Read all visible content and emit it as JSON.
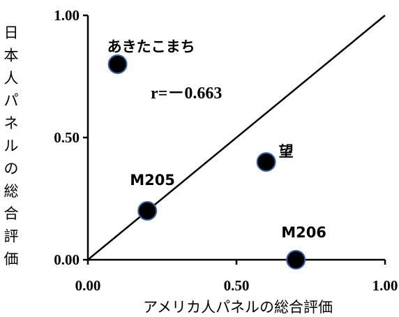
{
  "chart_data": {
    "type": "scatter",
    "xlabel": "アメリカ人パネルの総合評価",
    "ylabel": "日本人パネルの総合評価",
    "xlim": [
      0,
      1
    ],
    "ylim": [
      0,
      1
    ],
    "x_ticks": [
      "0.00",
      "0.50",
      "1.00"
    ],
    "y_ticks": [
      "0.00",
      "0.50",
      "1.00"
    ],
    "grid": false,
    "annotation": "r=－0.663",
    "reference_line": {
      "from": [
        0,
        0
      ],
      "to": [
        1,
        1
      ]
    },
    "points": [
      {
        "label": "あきたこまち",
        "x": 0.1,
        "y": 0.8
      },
      {
        "label": "望",
        "x": 0.6,
        "y": 0.4
      },
      {
        "label": "M205",
        "x": 0.2,
        "y": 0.2
      },
      {
        "label": "M206",
        "x": 0.7,
        "y": 0.0
      }
    ],
    "colors": {
      "marker_fill": "#000000",
      "marker_stroke": "#3a63a8",
      "axis": "#000000"
    }
  }
}
